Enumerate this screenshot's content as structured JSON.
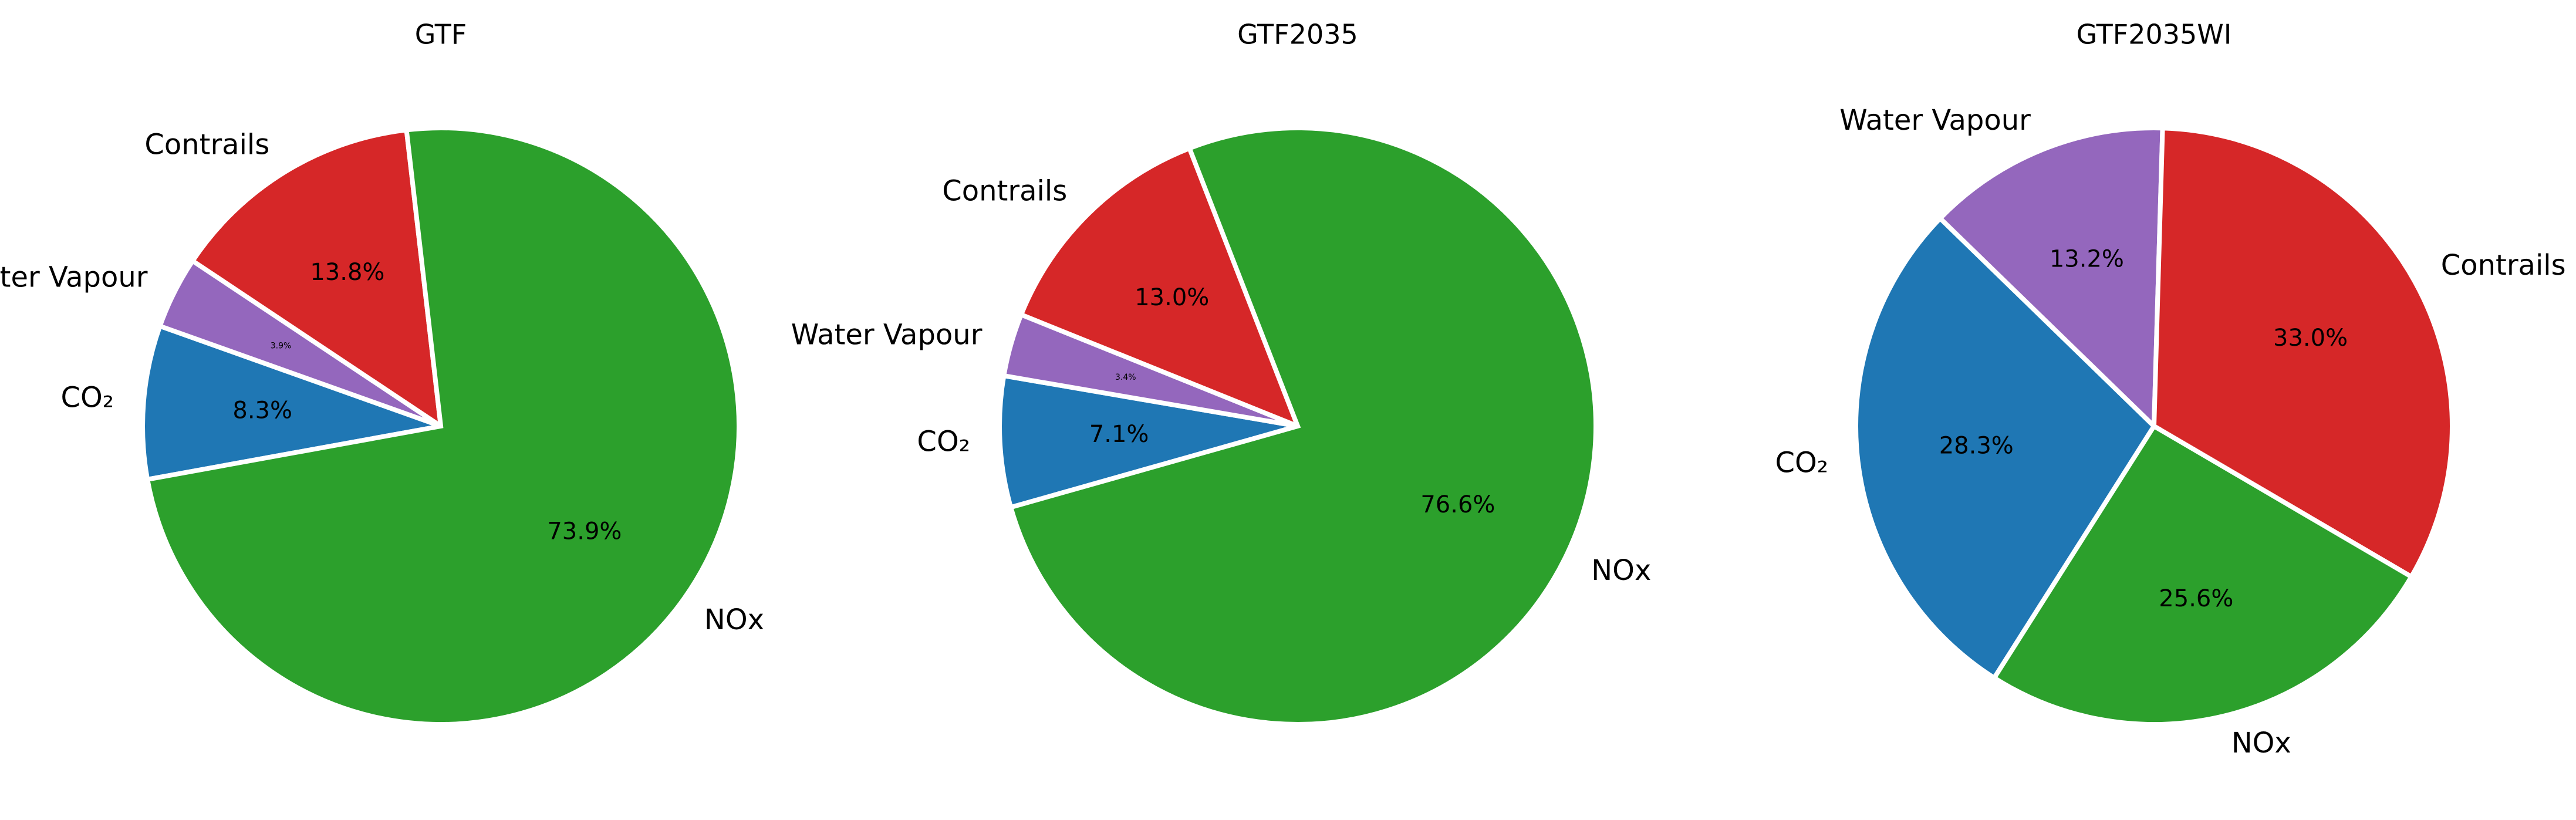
{
  "chart_data": [
    {
      "type": "pie",
      "title": "GTF",
      "labels": [
        "CO₂",
        "Water Vapour",
        "Contrails",
        "NOx"
      ],
      "values": [
        8.3,
        3.9,
        13.8,
        73.9
      ],
      "pct_labels": [
        "8.3%",
        "3.9%",
        "13.8%",
        "73.9%"
      ],
      "colors": [
        "#1f77b4",
        "#9467bd",
        "#d62728",
        "#2ca02c"
      ],
      "start_angle_deg": 190.3,
      "direction": "clockwise"
    },
    {
      "type": "pie",
      "title": "GTF2035",
      "labels": [
        "CO₂",
        "Water Vapour",
        "Contrails",
        "NOx"
      ],
      "values": [
        7.1,
        3.4,
        13.0,
        76.6
      ],
      "pct_labels": [
        "7.1%",
        "3.4%",
        "13.0%",
        "76.6%"
      ],
      "colors": [
        "#1f77b4",
        "#9467bd",
        "#d62728",
        "#2ca02c"
      ],
      "start_angle_deg": 195.8,
      "direction": "clockwise"
    },
    {
      "type": "pie",
      "title": "GTF2035WI",
      "labels": [
        "CO₂",
        "Water Vapour",
        "Contrails",
        "NOx"
      ],
      "values": [
        28.3,
        13.2,
        33.0,
        25.6
      ],
      "pct_labels": [
        "28.3%",
        "13.2%",
        "33.0%",
        "25.6%"
      ],
      "colors": [
        "#1f77b4",
        "#9467bd",
        "#d62728",
        "#2ca02c"
      ],
      "start_angle_deg": 237.6,
      "direction": "clockwise"
    }
  ]
}
